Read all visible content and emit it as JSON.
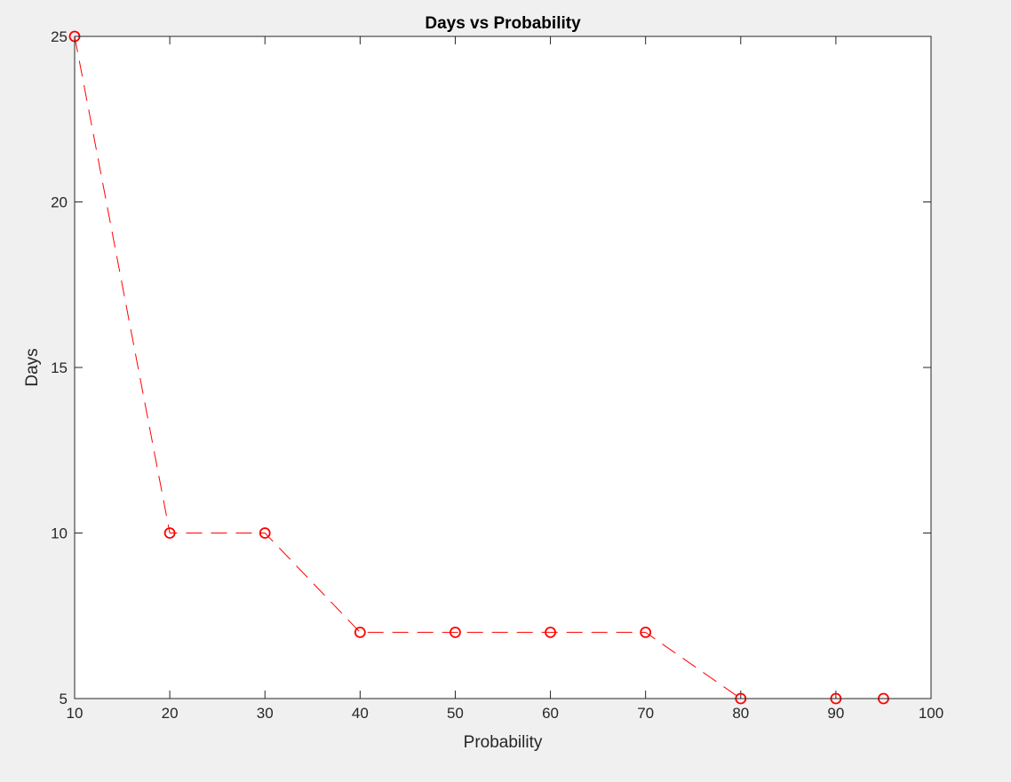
{
  "chart_data": {
    "type": "line",
    "title": "Days vs Probability",
    "xlabel": "Probability",
    "ylabel": "Days",
    "xlim": [
      10,
      100
    ],
    "ylim": [
      5,
      25
    ],
    "xticks": [
      10,
      20,
      30,
      40,
      50,
      60,
      70,
      80,
      90,
      100
    ],
    "yticks": [
      5,
      10,
      15,
      20,
      25
    ],
    "grid": false,
    "legend": "none",
    "series": [
      {
        "x": [
          10,
          20,
          30,
          40,
          50,
          60,
          70,
          80,
          90,
          95
        ],
        "y": [
          25,
          10,
          10,
          7,
          7,
          7,
          7,
          5,
          5,
          5
        ],
        "color": "#ff0000",
        "line_style": "dashed",
        "marker": "circle"
      }
    ]
  },
  "colors": {
    "figure_background": "#f0f0f0",
    "axes_background": "#ffffff",
    "axis_color": "#262626",
    "series_color": "#ff0000"
  }
}
